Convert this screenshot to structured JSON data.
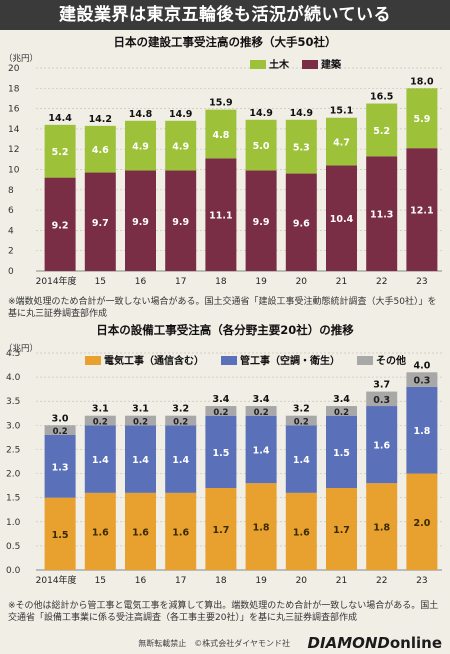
{
  "banner": {
    "title": "建設業界は東京五輪後も活況が続いている"
  },
  "charts": [
    {
      "title": "日本の建設工事受注高の推移（大手50社）",
      "unit": "（兆円）",
      "ylim": [
        0,
        20
      ],
      "yticks": [
        0,
        2,
        4,
        6,
        8,
        10,
        12,
        14,
        16,
        18,
        20
      ],
      "categories": [
        "2014年度",
        "15",
        "16",
        "17",
        "18",
        "19",
        "20",
        "21",
        "22",
        "23"
      ],
      "series": [
        {
          "name": "建築",
          "color": "#7a2e45",
          "values": [
            9.2,
            9.7,
            9.9,
            9.9,
            11.1,
            9.9,
            9.6,
            10.4,
            11.3,
            12.1
          ]
        },
        {
          "name": "土木",
          "color": "#9dc23a",
          "values": [
            5.2,
            4.6,
            4.9,
            4.9,
            4.8,
            5.0,
            5.3,
            4.7,
            5.2,
            5.9
          ]
        }
      ],
      "totals": [
        14.4,
        14.2,
        14.8,
        14.9,
        15.9,
        14.9,
        14.9,
        15.1,
        16.5,
        18.0
      ],
      "legend": [
        {
          "name": "土木",
          "color": "#9dc23a"
        },
        {
          "name": "建築",
          "color": "#7a2e45"
        }
      ],
      "note": "※端数処理のため合計が一致しない場合がある。国土交通省「建設工事受注動態統計調査（大手50社）」を基に丸三証券調査部作成"
    },
    {
      "title": "日本の設備工事受注高（各分野主要20社）の推移",
      "unit": "（兆円）",
      "ylim": [
        0,
        4.5
      ],
      "yticks": [
        0,
        0.5,
        1.0,
        1.5,
        2.0,
        2.5,
        3.0,
        3.5,
        4.0,
        4.5
      ],
      "categories": [
        "2014年度",
        "15",
        "16",
        "17",
        "18",
        "19",
        "20",
        "21",
        "22",
        "23"
      ],
      "series": [
        {
          "name": "電気工事（通信含む）",
          "color": "#e8a02e",
          "values": [
            1.5,
            1.6,
            1.6,
            1.6,
            1.7,
            1.8,
            1.6,
            1.7,
            1.8,
            2.0
          ]
        },
        {
          "name": "管工事（空調・衛生）",
          "color": "#5a70b8",
          "values": [
            1.3,
            1.4,
            1.4,
            1.4,
            1.5,
            1.4,
            1.4,
            1.5,
            1.6,
            1.8
          ]
        },
        {
          "name": "その他",
          "color": "#a8a8a8",
          "values": [
            0.2,
            0.2,
            0.2,
            0.2,
            0.2,
            0.2,
            0.2,
            0.2,
            0.3,
            0.3
          ]
        }
      ],
      "totals": [
        3.0,
        3.1,
        3.1,
        3.2,
        3.4,
        3.4,
        3.2,
        3.4,
        3.7,
        4.0
      ],
      "legend": [
        {
          "name": "電気工事（通信含む）",
          "color": "#e8a02e"
        },
        {
          "name": "管工事（空調・衛生）",
          "color": "#5a70b8"
        },
        {
          "name": "その他",
          "color": "#a8a8a8"
        }
      ],
      "note": "※その他は総計から管工事と電気工事を減算して算出。端数処理のため合計が一致しない場合がある。国土交通省「設備工事業に係る受注高調査（各工事主要20社）」を基に丸三証券調査部作成"
    }
  ],
  "chart_data": [
    {
      "type": "bar",
      "title": "日本の建設工事受注高の推移（大手50社）",
      "ylabel": "（兆円）",
      "categories": [
        "2014年度",
        "15",
        "16",
        "17",
        "18",
        "19",
        "20",
        "21",
        "22",
        "23"
      ],
      "series": [
        {
          "name": "建築",
          "values": [
            9.2,
            9.7,
            9.9,
            9.9,
            11.1,
            9.9,
            9.6,
            10.4,
            11.3,
            12.1
          ]
        },
        {
          "name": "土木",
          "values": [
            5.2,
            4.6,
            4.9,
            4.9,
            4.8,
            5.0,
            5.3,
            4.7,
            5.2,
            5.9
          ]
        }
      ],
      "totals": [
        14.4,
        14.2,
        14.8,
        14.9,
        15.9,
        14.9,
        14.9,
        15.1,
        16.5,
        18.0
      ],
      "ylim": [
        0,
        20
      ],
      "stacked": true,
      "legend": "top-right",
      "grid": true
    },
    {
      "type": "bar",
      "title": "日本の設備工事受注高（各分野主要20社）の推移",
      "ylabel": "（兆円）",
      "categories": [
        "2014年度",
        "15",
        "16",
        "17",
        "18",
        "19",
        "20",
        "21",
        "22",
        "23"
      ],
      "series": [
        {
          "name": "電気工事（通信含む）",
          "values": [
            1.5,
            1.6,
            1.6,
            1.6,
            1.7,
            1.8,
            1.6,
            1.7,
            1.8,
            2.0
          ]
        },
        {
          "name": "管工事（空調・衛生）",
          "values": [
            1.3,
            1.4,
            1.4,
            1.4,
            1.5,
            1.4,
            1.4,
            1.5,
            1.6,
            1.8
          ]
        },
        {
          "name": "その他",
          "values": [
            0.2,
            0.2,
            0.2,
            0.2,
            0.2,
            0.2,
            0.2,
            0.2,
            0.3,
            0.3
          ]
        }
      ],
      "totals": [
        3.0,
        3.1,
        3.1,
        3.2,
        3.4,
        3.4,
        3.2,
        3.4,
        3.7,
        4.0
      ],
      "ylim": [
        0,
        4.5
      ],
      "stacked": true,
      "legend": "top",
      "grid": true
    }
  ],
  "footer": {
    "copyright": "無断転載禁止　©株式会社ダイヤモンド社",
    "brand_main": "DIAMOND",
    "brand_sub": "online"
  }
}
